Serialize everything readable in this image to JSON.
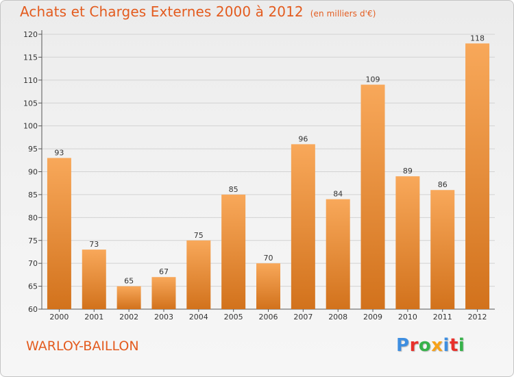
{
  "header": {
    "title": "Achats et Charges Externes 2000 à 2012",
    "unit": "(en milliers d'€)"
  },
  "footer": {
    "commune": "WARLOY-BAILLON",
    "logo": "Proxiti",
    "logo_colors": [
      "#3e8ee0",
      "#e8312b",
      "#36b24a",
      "#f7a21b",
      "#3e8ee0",
      "#e8312b",
      "#36b24a"
    ]
  },
  "colors": {
    "bar_top": "#f8a85a",
    "bar_bottom": "#d2721c",
    "grid": "#d2d2d2",
    "accent": "#e35b1e"
  },
  "chart_data": {
    "type": "bar",
    "title": "Achats et Charges Externes 2000 à 2012",
    "categories": [
      "2000",
      "2001",
      "2002",
      "2003",
      "2004",
      "2005",
      "2006",
      "2007",
      "2008",
      "2009",
      "2010",
      "2011",
      "2012"
    ],
    "values": [
      93,
      73,
      65,
      67,
      75,
      85,
      70,
      96,
      84,
      109,
      89,
      86,
      118
    ],
    "ylim": [
      60,
      120
    ],
    "yticks": [
      60,
      65,
      70,
      75,
      80,
      85,
      90,
      95,
      100,
      105,
      110,
      115,
      120
    ],
    "grid": true,
    "data_labels": true
  }
}
